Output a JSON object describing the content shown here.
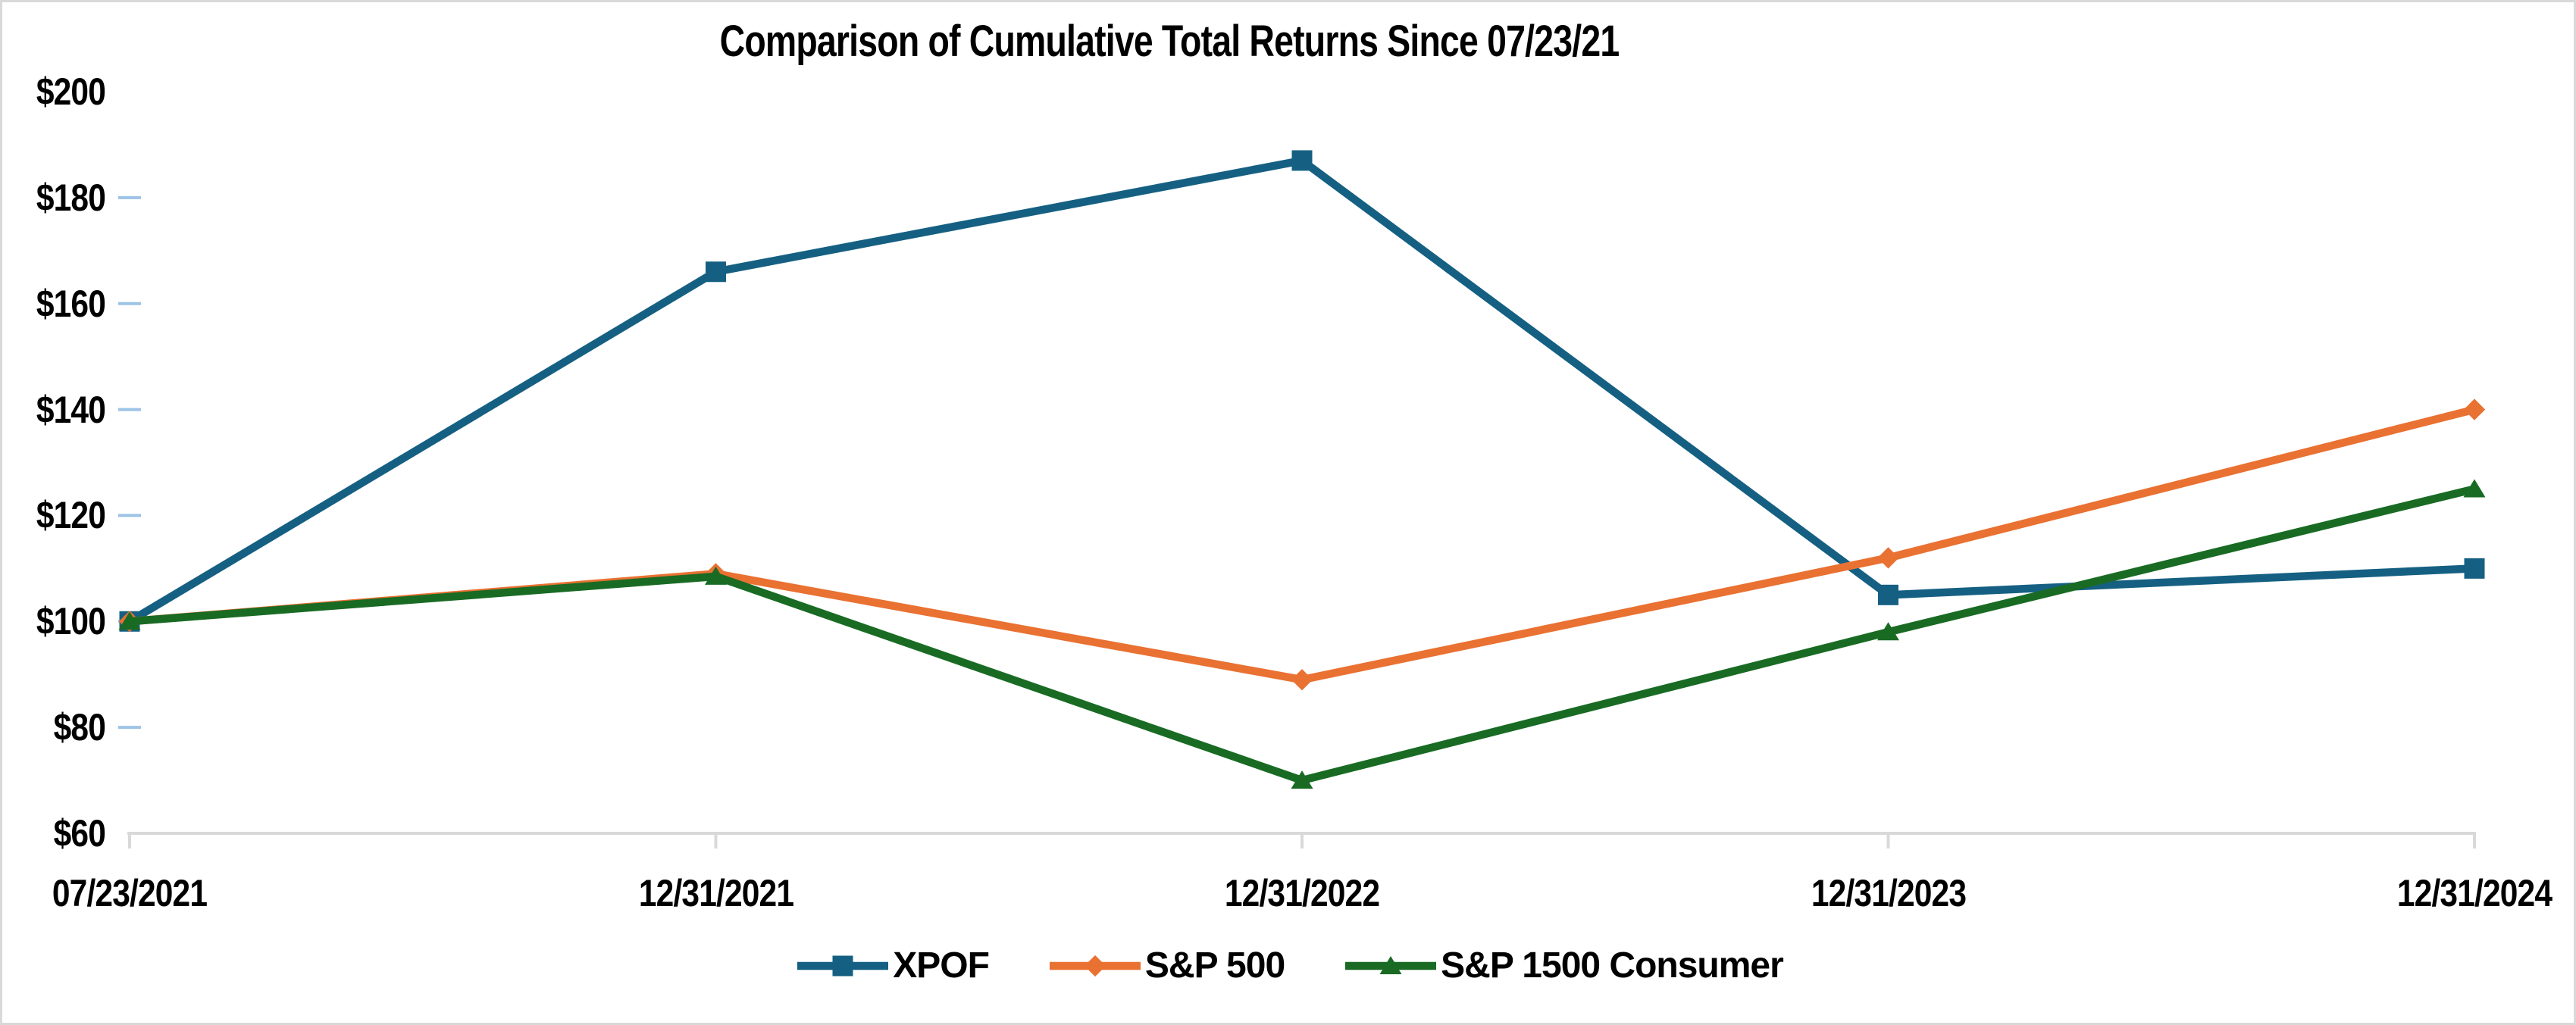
{
  "page": {
    "background_color": "#FFFFFF",
    "border_color": "#D9D9D9"
  },
  "chart_data": {
    "type": "line",
    "title": "Comparison of Cumulative Total Returns Since 07/23/21",
    "categories": [
      "07/23/2021",
      "12/31/2021",
      "12/31/2022",
      "12/31/2023",
      "12/31/2024"
    ],
    "series": [
      {
        "name": "XPOF",
        "marker": "square",
        "color": "#156082",
        "values": [
          100,
          166,
          187,
          105,
          110
        ]
      },
      {
        "name": "S&P 500",
        "marker": "diamond",
        "color": "#E97132",
        "values": [
          100,
          109,
          89,
          112,
          140
        ]
      },
      {
        "name": "S&P 1500 Consumer",
        "marker": "triangle",
        "color": "#196B24",
        "values": [
          100,
          108.5,
          70,
          98,
          125
        ]
      }
    ],
    "ylim": [
      60,
      200
    ],
    "y_tick_step": 20,
    "y_value_prefix": "$",
    "y_tick_labels": [
      "$60",
      "$80",
      "$100",
      "$120",
      "$140",
      "$160",
      "$180",
      "$200"
    ],
    "grid": false,
    "legend_position": "bottom",
    "axes": {
      "y_axis_color": "#9DC3E6",
      "y_axis_fade_color": "#EAF4FC",
      "x_axis_color": "#D9D9D9",
      "text_color": "#000000"
    }
  }
}
